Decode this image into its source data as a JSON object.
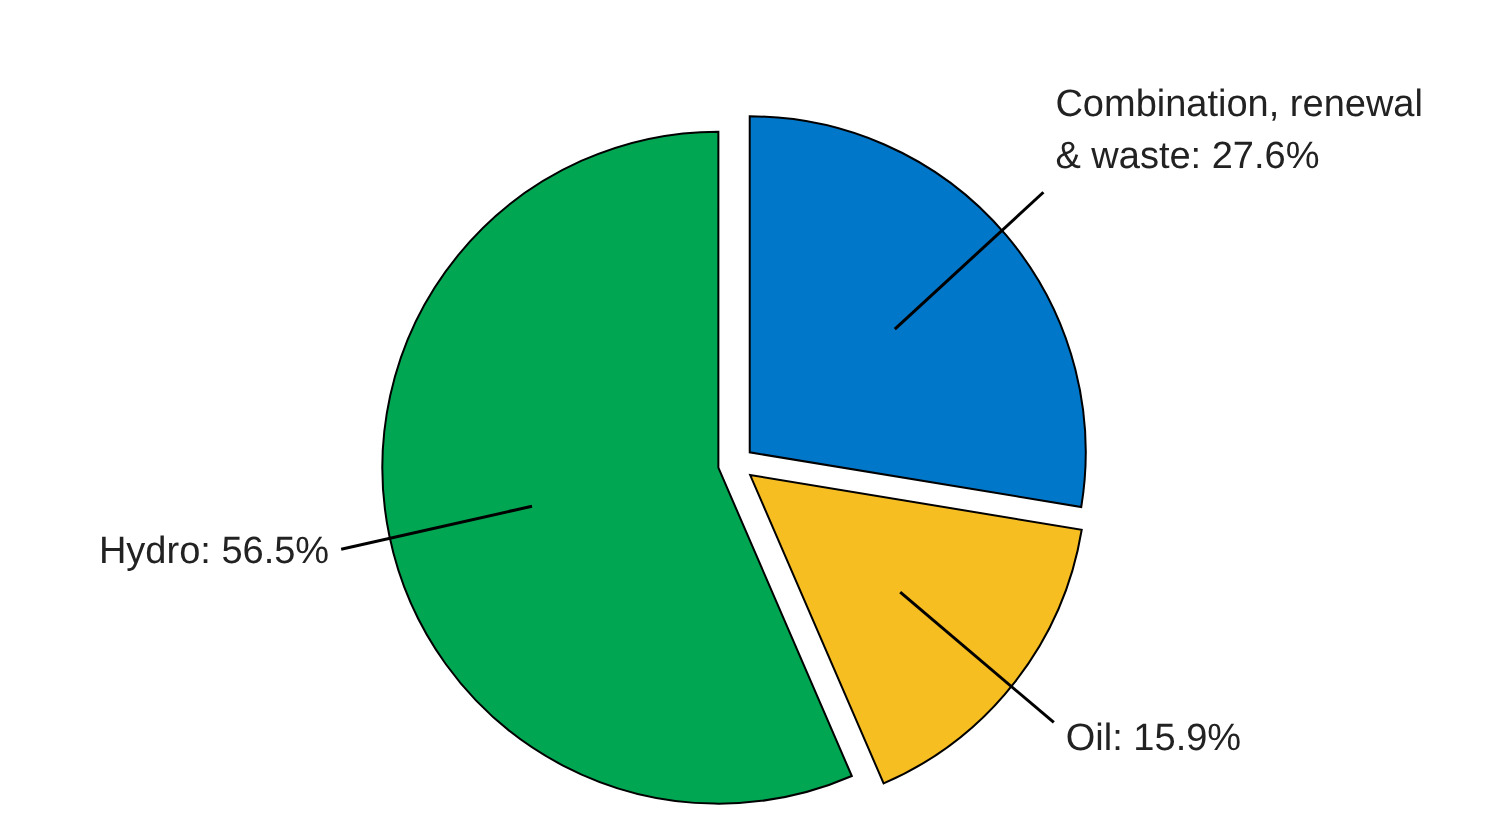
{
  "chart_data": {
    "type": "pie",
    "categories": [
      "Combination, renewal & waste: 27.6%",
      "Oil: 15.9%",
      "Hydro: 56.5%"
    ],
    "values": [
      27.6,
      15.9,
      56.5
    ],
    "colors": [
      "#0077c8",
      "#f7be22",
      "#00a651"
    ]
  }
}
